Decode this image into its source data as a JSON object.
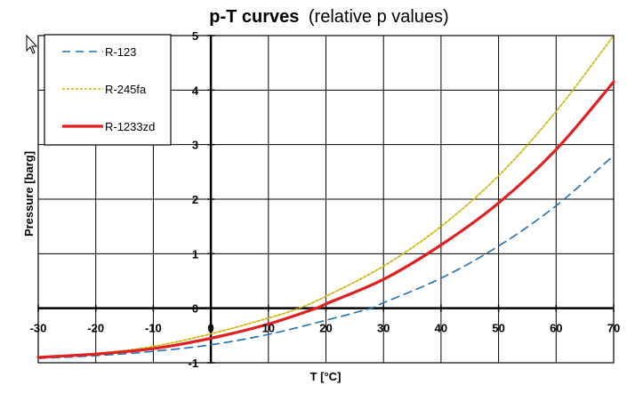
{
  "chart_data": {
    "type": "line",
    "title": "p-T curves",
    "subtitle": "(relative p values)",
    "xlabel": "T [°C]",
    "ylabel": "Pressure [barg]",
    "xlim": [
      -30,
      70
    ],
    "ylim": [
      -1,
      5
    ],
    "xticks": [
      "-30",
      "-20",
      "-10",
      "0",
      "10",
      "20",
      "30",
      "40",
      "50",
      "60",
      "70"
    ],
    "yticks": [
      "-1",
      "0",
      "1",
      "2",
      "3",
      "4",
      "5"
    ],
    "grid": true,
    "legend_position": "top-left",
    "series": [
      {
        "name": "R-123",
        "color": "#1f6fb2",
        "style": "dashed",
        "x": [
          -30,
          -20,
          -10,
          0,
          10,
          20,
          27.8,
          30,
          40,
          50,
          60,
          70
        ],
        "y": [
          -0.92,
          -0.87,
          -0.79,
          -0.67,
          -0.48,
          -0.22,
          0.0,
          0.1,
          0.55,
          1.14,
          1.88,
          2.8
        ]
      },
      {
        "name": "R-245fa",
        "color": "#c8b400",
        "style": "dotted",
        "x": [
          -30,
          -20,
          -10,
          0,
          10,
          15.3,
          20,
          30,
          40,
          50,
          60,
          70
        ],
        "y": [
          -0.9,
          -0.83,
          -0.7,
          -0.47,
          -0.18,
          0.0,
          0.22,
          0.77,
          1.5,
          2.43,
          3.61,
          5.0
        ]
      },
      {
        "name": "R-1233zd",
        "color": "#e02020",
        "style": "solid",
        "x": [
          -30,
          -20,
          -10,
          0,
          10,
          18.3,
          20,
          30,
          40,
          50,
          60,
          70
        ],
        "y": [
          -0.9,
          -0.84,
          -0.74,
          -0.55,
          -0.29,
          0.0,
          0.08,
          0.53,
          1.16,
          1.93,
          2.91,
          4.15
        ]
      }
    ]
  }
}
